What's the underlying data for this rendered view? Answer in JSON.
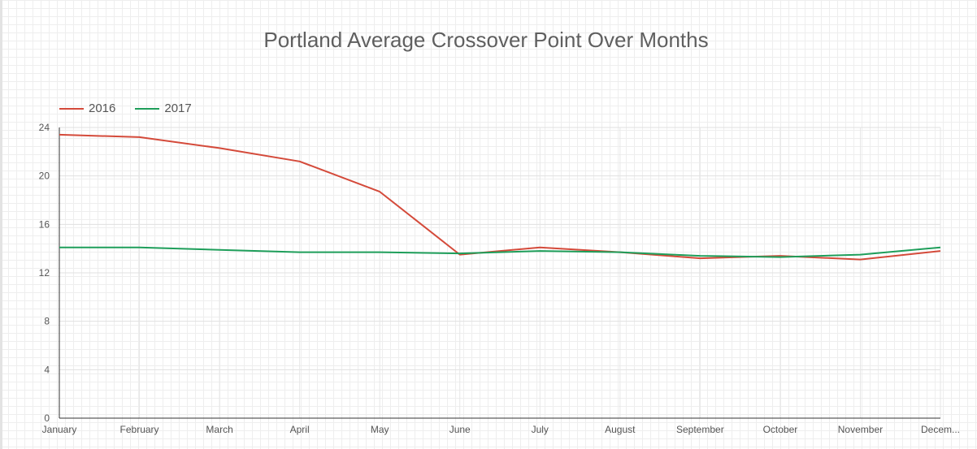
{
  "chart_data": {
    "type": "line",
    "title": "Portland Average Crossover Point Over Months",
    "categories": [
      "January",
      "February",
      "March",
      "April",
      "May",
      "June",
      "July",
      "August",
      "September",
      "October",
      "November",
      "Decem..."
    ],
    "series": [
      {
        "name": "2016",
        "color": "#d44a3a",
        "values": [
          23.4,
          23.2,
          22.3,
          21.2,
          18.7,
          13.5,
          14.1,
          13.7,
          13.2,
          13.4,
          13.1,
          13.8
        ]
      },
      {
        "name": "2017",
        "color": "#1e9e5a",
        "values": [
          14.1,
          14.1,
          13.9,
          13.7,
          13.7,
          13.6,
          13.8,
          13.7,
          13.4,
          13.3,
          13.5,
          14.1
        ]
      }
    ],
    "ylim": [
      0,
      24
    ],
    "yticks": [
      0,
      4,
      8,
      12,
      16,
      20,
      24
    ],
    "legend_position": "top-left",
    "grid": true
  }
}
